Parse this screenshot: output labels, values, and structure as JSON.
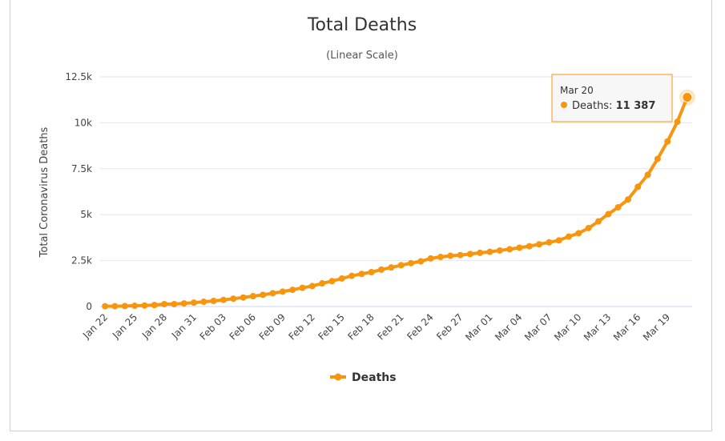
{
  "chart_data": {
    "type": "line",
    "title": "Total Deaths",
    "subtitle": "(Linear Scale)",
    "ylabel": "Total Coronavirus Deaths",
    "xlabel": "",
    "ylim": [
      0,
      12500
    ],
    "y_ticks": [
      {
        "value": 0,
        "label": "0"
      },
      {
        "value": 2500,
        "label": "2.5k"
      },
      {
        "value": 5000,
        "label": "5k"
      },
      {
        "value": 7500,
        "label": "7.5k"
      },
      {
        "value": 10000,
        "label": "10k"
      },
      {
        "value": 12500,
        "label": "12.5k"
      }
    ],
    "x_tick_labels": [
      "Jan 22",
      "Jan 25",
      "Jan 28",
      "Jan 31",
      "Feb 03",
      "Feb 06",
      "Feb 09",
      "Feb 12",
      "Feb 15",
      "Feb 18",
      "Feb 21",
      "Feb 24",
      "Feb 27",
      "Mar 01",
      "Mar 04",
      "Mar 07",
      "Mar 10",
      "Mar 13",
      "Mar 16",
      "Mar 19"
    ],
    "grid": "horizontal",
    "legend_position": "bottom-center",
    "color": "#F7960E",
    "series": [
      {
        "name": "Deaths",
        "values": [
          17,
          18,
          26,
          42,
          56,
          82,
          131,
          133,
          171,
          213,
          259,
          305,
          362,
          426,
          492,
          565,
          638,
          724,
          813,
          910,
          1018,
          1115,
          1261,
          1383,
          1526,
          1669,
          1775,
          1873,
          2009,
          2126,
          2247,
          2360,
          2460,
          2618,
          2699,
          2763,
          2800,
          2858,
          2923,
          2977,
          3050,
          3117,
          3202,
          3285,
          3387,
          3493,
          3600,
          3807,
          3993,
          4270,
          4633,
          5029,
          5402,
          5824,
          6517,
          7168,
          8038,
          8983,
          10053,
          11387
        ]
      }
    ],
    "tooltip": {
      "date": "Mar 20",
      "series": "Deaths",
      "value_label": "11 387"
    }
  }
}
